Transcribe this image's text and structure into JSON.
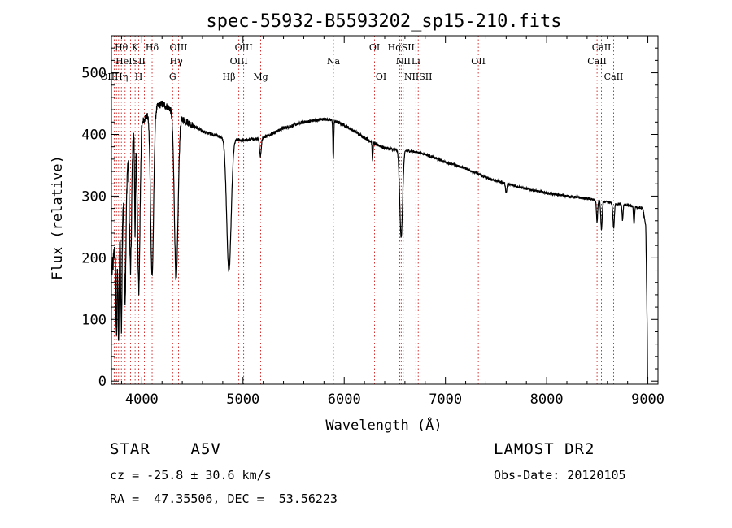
{
  "chart_data": {
    "type": "line",
    "title": "spec-55932-B5593202_sp15-210.fits",
    "xlabel": "Wavelength (Å)",
    "ylabel": "Flux (relative)",
    "xlim": [
      3700,
      9100
    ],
    "ylim": [
      -5,
      560
    ],
    "x_ticks": [
      4000,
      5000,
      6000,
      7000,
      8000,
      9000
    ],
    "y_ticks": [
      0,
      100,
      200,
      300,
      400,
      500
    ],
    "grid": false,
    "continuum": {
      "x": [
        3700,
        3800,
        3900,
        4000,
        4100,
        4200,
        4300,
        4400,
        4500,
        4600,
        4700,
        4800,
        5000,
        5200,
        5400,
        5600,
        5800,
        5900,
        6000,
        6100,
        6200,
        6300,
        6400,
        6500,
        6600,
        6700,
        6800,
        7000,
        7200,
        7400,
        7600,
        7800,
        8000,
        8200,
        8400,
        8600,
        8800,
        8950,
        8980,
        9000
      ],
      "y": [
        170,
        300,
        390,
        420,
        440,
        450,
        440,
        425,
        415,
        405,
        400,
        395,
        390,
        395,
        410,
        420,
        425,
        422,
        415,
        405,
        395,
        385,
        378,
        375,
        374,
        372,
        368,
        355,
        345,
        330,
        320,
        312,
        305,
        300,
        296,
        290,
        285,
        280,
        250,
        5
      ]
    },
    "absorption_lines": [
      {
        "center": 3750,
        "depth": 160,
        "width": 6
      },
      {
        "center": 3771,
        "depth": 190,
        "width": 6
      },
      {
        "center": 3798,
        "depth": 210,
        "width": 7
      },
      {
        "center": 3835,
        "depth": 200,
        "width": 9
      },
      {
        "center": 3889,
        "depth": 200,
        "width": 10
      },
      {
        "center": 3934,
        "depth": 150,
        "width": 5
      },
      {
        "center": 3970,
        "depth": 260,
        "width": 12
      },
      {
        "center": 4102,
        "depth": 270,
        "width": 15
      },
      {
        "center": 4340,
        "depth": 270,
        "width": 18
      },
      {
        "center": 4861,
        "depth": 215,
        "width": 22
      },
      {
        "center": 5172,
        "depth": 30,
        "width": 8
      },
      {
        "center": 5892,
        "depth": 65,
        "width": 4
      },
      {
        "center": 6280,
        "depth": 30,
        "width": 4
      },
      {
        "center": 6563,
        "depth": 140,
        "width": 14
      },
      {
        "center": 7600,
        "depth": 15,
        "width": 6
      },
      {
        "center": 8498,
        "depth": 35,
        "width": 6
      },
      {
        "center": 8542,
        "depth": 45,
        "width": 7
      },
      {
        "center": 8662,
        "depth": 40,
        "width": 7
      },
      {
        "center": 8750,
        "depth": 25,
        "width": 5
      },
      {
        "center": 8863,
        "depth": 30,
        "width": 5
      }
    ],
    "line_markers": [
      {
        "label": "Hθ",
        "x": 3798,
        "row": 0
      },
      {
        "label": "K",
        "x": 3934,
        "row": 0
      },
      {
        "label": "Hδ",
        "x": 4102,
        "row": 0
      },
      {
        "label": "OIII",
        "x": 4363,
        "row": 0
      },
      {
        "label": "OIII",
        "x": 5007,
        "row": 0
      },
      {
        "label": "OI",
        "x": 6300,
        "row": 0
      },
      {
        "label": "HαSII",
        "x": 6563,
        "row": 0
      },
      {
        "label": "CaII",
        "x": 8542,
        "row": 0
      },
      {
        "label": "HeISII",
        "x": 3889,
        "row": 1
      },
      {
        "label": "Hγ",
        "x": 4340,
        "row": 1
      },
      {
        "label": "OIII",
        "x": 4959,
        "row": 1
      },
      {
        "label": "Na",
        "x": 5893,
        "row": 1
      },
      {
        "label": "NII",
        "x": 6583,
        "row": 1
      },
      {
        "label": "Li",
        "x": 6708,
        "row": 1
      },
      {
        "label": "OII",
        "x": 7325,
        "row": 1
      },
      {
        "label": "CaII",
        "x": 8498,
        "row": 1
      },
      {
        "label": "OIIHη",
        "x": 3727,
        "row": 2
      },
      {
        "label": "H",
        "x": 3970,
        "row": 2
      },
      {
        "label": "G",
        "x": 4305,
        "row": 2
      },
      {
        "label": "Hβ",
        "x": 4861,
        "row": 2
      },
      {
        "label": "Mg",
        "x": 5175,
        "row": 2
      },
      {
        "label": "OI",
        "x": 6364,
        "row": 2
      },
      {
        "label": "NIISII",
        "x": 6731,
        "row": 2
      },
      {
        "label": "CaII",
        "x": 8662,
        "row": 2
      }
    ],
    "marker_line_x": [
      3727,
      3750,
      3771,
      3798,
      3835,
      3889,
      3934,
      3970,
      4026,
      4102,
      4305,
      4340,
      4363,
      4861,
      4959,
      5007,
      5175,
      5893,
      6300,
      6364,
      6548,
      6563,
      6583,
      6708,
      6731,
      7325,
      8498,
      8542,
      8662
    ],
    "colors": {
      "spectrum": "#000000",
      "marker": "#cc0000"
    }
  },
  "info": {
    "class_line": "STAR    A5V",
    "survey": "LAMOST DR2",
    "cz": "cz = -25.8 ± 30.6 km/s",
    "obs_date": "Obs-Date: 20120105",
    "coords": "RA =  47.35506, DEC =  53.56223"
  }
}
